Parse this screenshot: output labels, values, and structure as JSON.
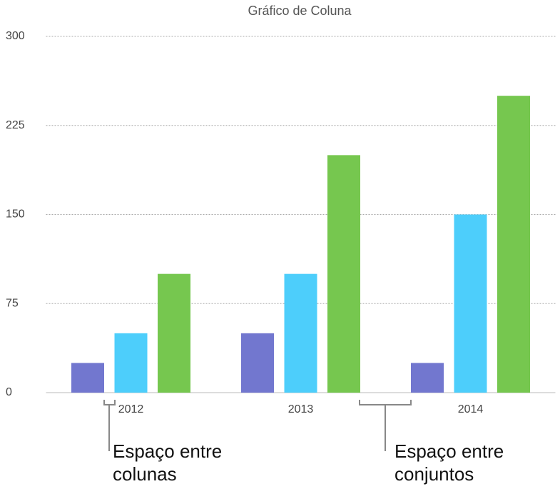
{
  "chart_data": {
    "type": "bar",
    "title": "Gráfico de Coluna",
    "categories": [
      "2012",
      "2013",
      "2014"
    ],
    "series": [
      {
        "color": "#7277cf",
        "values": [
          25,
          50,
          25
        ]
      },
      {
        "color": "#4dcefb",
        "values": [
          50,
          100,
          150
        ]
      },
      {
        "color": "#76c74f",
        "values": [
          100,
          200,
          250
        ]
      }
    ],
    "ylim": [
      0,
      300
    ],
    "yticks": [
      0,
      75,
      150,
      225,
      300
    ],
    "grid": true,
    "annotations": [
      {
        "lines": [
          "Espaço entre",
          "colunas"
        ]
      },
      {
        "lines": [
          "Espaço entre",
          "conjuntos"
        ]
      }
    ]
  }
}
